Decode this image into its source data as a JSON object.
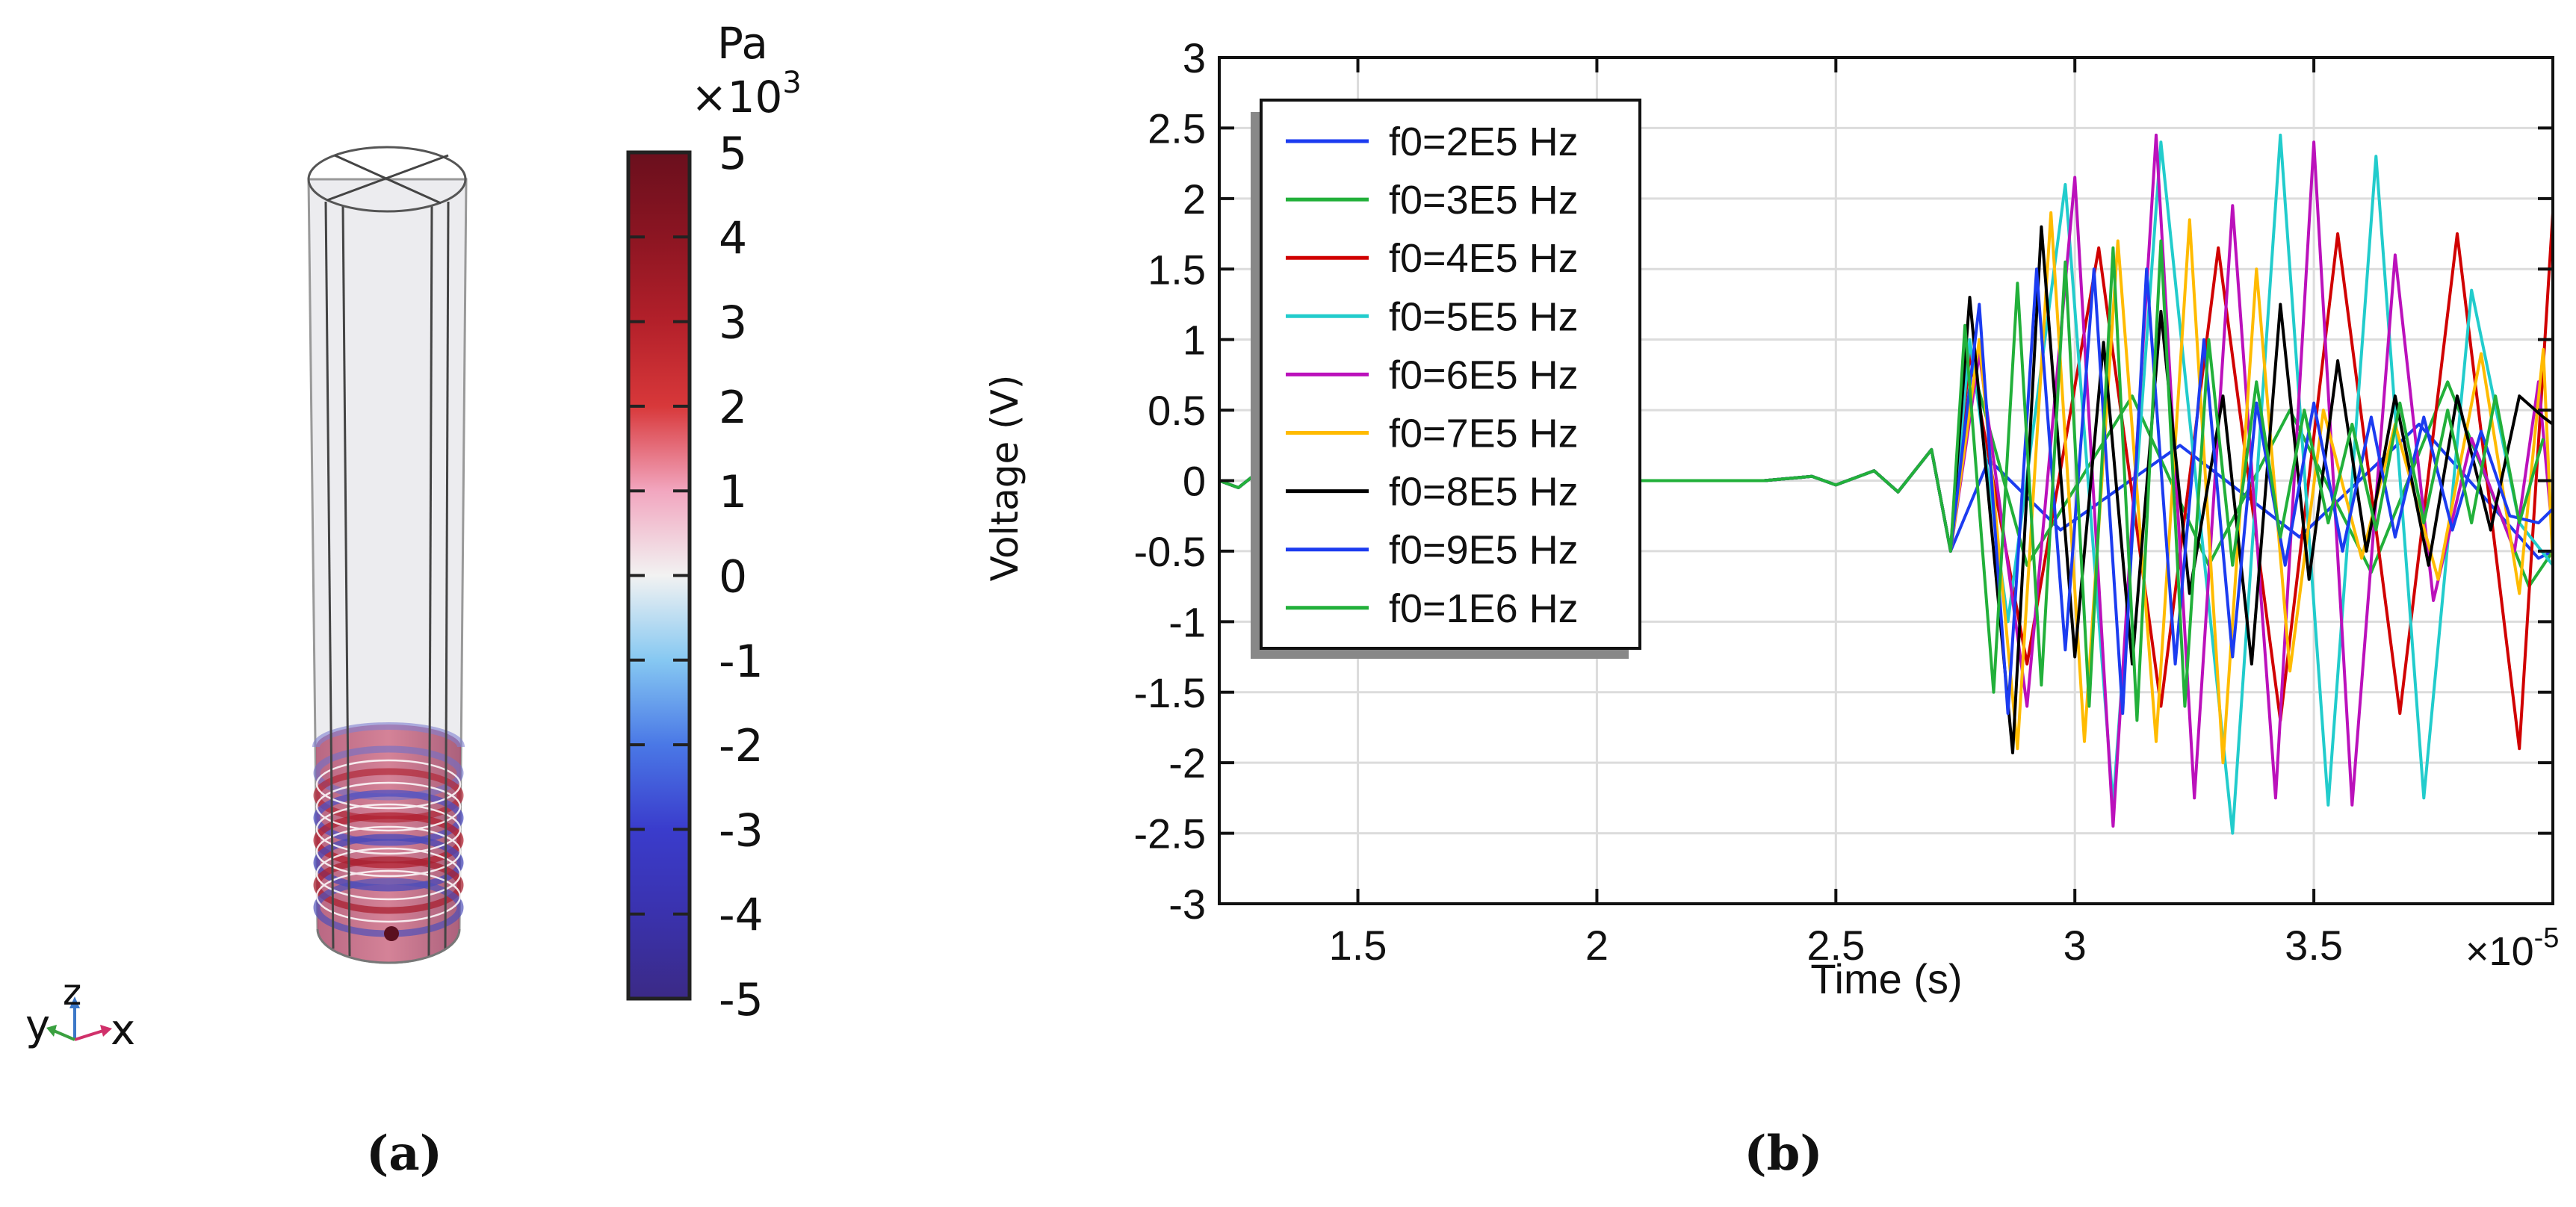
{
  "panel_a": {
    "caption": "(a)",
    "colorbar": {
      "unit": "Pa",
      "multiplier_base": "×10",
      "multiplier_exp": "3",
      "ticks": [
        "5",
        "4",
        "3",
        "2",
        "1",
        "0",
        "-1",
        "-2",
        "-3",
        "-4",
        "-5"
      ],
      "range": [
        -5,
        5
      ],
      "colors": [
        "#3b2a86",
        "#3a32ad",
        "#3a3ccc",
        "#4a78e6",
        "#86c8f2",
        "#f2f2f2",
        "#f2a6bf",
        "#d8383a",
        "#b3202a",
        "#8c1522",
        "#6a0f1d"
      ]
    },
    "axis_triad": {
      "y": "y",
      "z": "z",
      "x": "x"
    }
  },
  "panel_b": {
    "caption": "(b)"
  },
  "chart_data": {
    "type": "line",
    "title": "",
    "xlabel": "Time (s)",
    "ylabel": "Voltage (V)",
    "x_multiplier_base": "×10",
    "x_multiplier_exp": "-5",
    "xlim": [
      1.21,
      4.0
    ],
    "ylim": [
      -3,
      3
    ],
    "x_ticks": [
      1.5,
      2,
      2.5,
      3,
      3.5
    ],
    "x_tick_labels": [
      "1.5",
      "2",
      "2.5",
      "3",
      "3.5"
    ],
    "y_ticks": [
      3,
      2.5,
      2,
      1.5,
      1,
      0.5,
      0,
      -0.5,
      -1,
      -1.5,
      -2,
      -2.5,
      -3
    ],
    "y_tick_labels": [
      "3",
      "2.5",
      "2",
      "1.5",
      "1",
      "0.5",
      "0",
      "-0.5",
      "-1",
      "-1.5",
      "-2",
      "-2.5",
      "-3"
    ],
    "grid": true,
    "legend_position": "top-left",
    "baseline_points": [
      [
        1.21,
        0
      ],
      [
        1.25,
        -0.05
      ],
      [
        1.28,
        0.03
      ],
      [
        1.32,
        0
      ],
      [
        2.35,
        0
      ],
      [
        2.45,
        0.03
      ],
      [
        2.5,
        -0.03
      ],
      [
        2.58,
        0.07
      ],
      [
        2.63,
        -0.08
      ],
      [
        2.7,
        0.22
      ],
      [
        2.74,
        -0.5
      ]
    ],
    "series": [
      {
        "name": "f0=2E5 Hz",
        "color": "#1c3cf0",
        "points": [
          [
            2.82,
            0.15
          ],
          [
            2.97,
            -0.35
          ],
          [
            3.22,
            0.25
          ],
          [
            3.47,
            -0.4
          ],
          [
            3.72,
            0.4
          ],
          [
            3.97,
            -0.55
          ],
          [
            4.0,
            -0.5
          ]
        ]
      },
      {
        "name": "f0=3E5 Hz",
        "color": "#22b03a",
        "points": [
          [
            2.77,
            1.0
          ],
          [
            2.9,
            -0.6
          ],
          [
            3.12,
            0.6
          ],
          [
            3.28,
            -0.6
          ],
          [
            3.45,
            0.5
          ],
          [
            3.62,
            -0.65
          ],
          [
            3.78,
            0.7
          ],
          [
            3.95,
            -0.75
          ],
          [
            4.0,
            -0.5
          ]
        ]
      },
      {
        "name": "f0=4E5 Hz",
        "color": "#d00000",
        "points": [
          [
            2.78,
            0.9
          ],
          [
            2.9,
            -1.3
          ],
          [
            3.05,
            1.65
          ],
          [
            3.18,
            -1.6
          ],
          [
            3.3,
            1.65
          ],
          [
            3.43,
            -1.7
          ],
          [
            3.55,
            1.75
          ],
          [
            3.68,
            -1.65
          ],
          [
            3.8,
            1.75
          ],
          [
            3.93,
            -1.9
          ],
          [
            4.0,
            1.9
          ]
        ]
      },
      {
        "name": "f0=5E5 Hz",
        "color": "#22cccc",
        "points": [
          [
            2.78,
            1.0
          ],
          [
            2.86,
            -1.0
          ],
          [
            2.98,
            2.1
          ],
          [
            3.08,
            -2.3
          ],
          [
            3.18,
            2.4
          ],
          [
            3.33,
            -2.5
          ],
          [
            3.43,
            2.45
          ],
          [
            3.53,
            -2.3
          ],
          [
            3.63,
            2.3
          ],
          [
            3.73,
            -2.25
          ],
          [
            3.83,
            1.35
          ],
          [
            3.93,
            -0.3
          ],
          [
            4.0,
            -0.6
          ]
        ]
      },
      {
        "name": "f0=6E5 Hz",
        "color": "#bb11bb",
        "points": [
          [
            2.8,
            0.9
          ],
          [
            2.9,
            -1.6
          ],
          [
            3.0,
            2.15
          ],
          [
            3.08,
            -2.45
          ],
          [
            3.17,
            2.45
          ],
          [
            3.25,
            -2.25
          ],
          [
            3.33,
            1.95
          ],
          [
            3.42,
            -2.25
          ],
          [
            3.5,
            2.4
          ],
          [
            3.58,
            -2.3
          ],
          [
            3.67,
            1.6
          ],
          [
            3.75,
            -0.85
          ],
          [
            3.83,
            0.3
          ],
          [
            3.92,
            -0.5
          ],
          [
            3.97,
            0.7
          ],
          [
            4.0,
            -0.4
          ]
        ]
      },
      {
        "name": "f0=7E5 Hz",
        "color": "#ffbb00",
        "points": [
          [
            2.8,
            1.0
          ],
          [
            2.88,
            -1.9
          ],
          [
            2.95,
            1.9
          ],
          [
            3.02,
            -1.85
          ],
          [
            3.09,
            1.7
          ],
          [
            3.17,
            -1.85
          ],
          [
            3.24,
            1.85
          ],
          [
            3.31,
            -2.0
          ],
          [
            3.38,
            1.5
          ],
          [
            3.45,
            -1.35
          ],
          [
            3.52,
            0.5
          ],
          [
            3.6,
            -0.55
          ],
          [
            3.67,
            0.4
          ],
          [
            3.76,
            -0.7
          ],
          [
            3.85,
            0.9
          ],
          [
            3.93,
            -0.8
          ],
          [
            3.98,
            0.93
          ],
          [
            4.0,
            -0.6
          ]
        ]
      },
      {
        "name": "f0=8E5 Hz",
        "color": "#000000",
        "points": [
          [
            2.78,
            1.3
          ],
          [
            2.87,
            -1.93
          ],
          [
            2.93,
            1.8
          ],
          [
            3.0,
            -1.25
          ],
          [
            3.06,
            0.98
          ],
          [
            3.12,
            -1.3
          ],
          [
            3.18,
            1.2
          ],
          [
            3.24,
            -0.8
          ],
          [
            3.31,
            0.6
          ],
          [
            3.37,
            -1.3
          ],
          [
            3.43,
            1.25
          ],
          [
            3.49,
            -0.7
          ],
          [
            3.55,
            0.85
          ],
          [
            3.61,
            -0.5
          ],
          [
            3.67,
            0.6
          ],
          [
            3.74,
            -0.6
          ],
          [
            3.8,
            0.6
          ],
          [
            3.87,
            -0.35
          ],
          [
            3.93,
            0.6
          ],
          [
            3.98,
            0.45
          ],
          [
            4.0,
            0.4
          ]
        ]
      },
      {
        "name": "f0=9E5 Hz",
        "color": "#1c3cf0",
        "points": [
          [
            2.8,
            1.25
          ],
          [
            2.86,
            -1.65
          ],
          [
            2.92,
            1.5
          ],
          [
            2.98,
            -1.2
          ],
          [
            3.04,
            1.5
          ],
          [
            3.1,
            -1.65
          ],
          [
            3.15,
            1.5
          ],
          [
            3.21,
            -1.3
          ],
          [
            3.27,
            1.0
          ],
          [
            3.33,
            -1.25
          ],
          [
            3.38,
            0.55
          ],
          [
            3.44,
            -0.6
          ],
          [
            3.5,
            0.55
          ],
          [
            3.56,
            -0.5
          ],
          [
            3.62,
            0.45
          ],
          [
            3.67,
            -0.4
          ],
          [
            3.73,
            0.45
          ],
          [
            3.79,
            -0.35
          ],
          [
            3.85,
            0.35
          ],
          [
            3.91,
            -0.25
          ],
          [
            3.97,
            -0.3
          ],
          [
            4.0,
            -0.2
          ]
        ]
      },
      {
        "name": "f0=1E6 Hz",
        "color": "#22b03a",
        "points": [
          [
            2.77,
            1.1
          ],
          [
            2.83,
            -1.5
          ],
          [
            2.88,
            1.4
          ],
          [
            2.93,
            -1.45
          ],
          [
            2.98,
            1.55
          ],
          [
            3.03,
            -1.6
          ],
          [
            3.08,
            1.65
          ],
          [
            3.13,
            -1.7
          ],
          [
            3.18,
            1.7
          ],
          [
            3.23,
            -1.6
          ],
          [
            3.28,
            1.0
          ],
          [
            3.33,
            -0.6
          ],
          [
            3.38,
            0.7
          ],
          [
            3.43,
            -0.4
          ],
          [
            3.48,
            0.5
          ],
          [
            3.53,
            -0.3
          ],
          [
            3.58,
            0.4
          ],
          [
            3.63,
            -0.35
          ],
          [
            3.68,
            0.55
          ],
          [
            3.73,
            -0.3
          ],
          [
            3.78,
            0.5
          ],
          [
            3.83,
            -0.3
          ],
          [
            3.88,
            0.6
          ],
          [
            3.93,
            -0.3
          ],
          [
            3.98,
            0.3
          ]
        ]
      }
    ]
  }
}
